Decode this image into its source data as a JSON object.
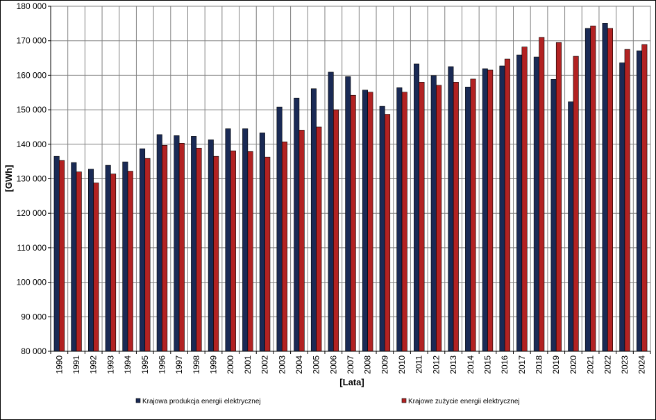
{
  "chart_data": {
    "type": "bar",
    "xlabel": "[Lata]",
    "ylabel": "[GWh]",
    "ylim": [
      80000,
      180000
    ],
    "y_ticks": [
      "80 000",
      "90 000",
      "100 000",
      "110 000",
      "120 000",
      "130 000",
      "140 000",
      "150 000",
      "160 000",
      "170 000",
      "180 000"
    ],
    "grid": true,
    "legend_position": "bottom",
    "categories": [
      "1990",
      "1991",
      "1992",
      "1993",
      "1994",
      "1995",
      "1996",
      "1997",
      "1998",
      "1999",
      "2000",
      "2001",
      "2002",
      "2003",
      "2004",
      "2005",
      "2006",
      "2007",
      "2008",
      "2009",
      "2010",
      "2011",
      "2012",
      "2013",
      "2014",
      "2015",
      "2016",
      "2017",
      "2018",
      "2019",
      "2020",
      "2021",
      "2022",
      "2023",
      "2024"
    ],
    "series": [
      {
        "name": "Krajowa produkcja energii elektrycznej",
        "color": "#1a2a55",
        "values": [
          136500,
          134700,
          132800,
          133900,
          134900,
          138700,
          142800,
          142500,
          142300,
          141300,
          144500,
          144500,
          143300,
          150800,
          153400,
          156100,
          160900,
          159600,
          155700,
          151000,
          156400,
          163300,
          159900,
          162500,
          156600,
          161900,
          162700,
          165900,
          165300,
          158800,
          152300,
          173600,
          175100,
          163600,
          167100
        ]
      },
      {
        "name": "Krajowe zużycie energii elektrycznej",
        "color": "#b22222",
        "values": [
          135300,
          132000,
          128800,
          131400,
          132200,
          135900,
          139700,
          140300,
          138900,
          136500,
          138100,
          137900,
          136300,
          140700,
          144100,
          145000,
          150000,
          154200,
          155100,
          148700,
          155100,
          158000,
          157100,
          158000,
          158900,
          161500,
          164700,
          168200,
          171000,
          169500,
          165500,
          174300,
          173600,
          167500,
          168900
        ]
      }
    ]
  }
}
